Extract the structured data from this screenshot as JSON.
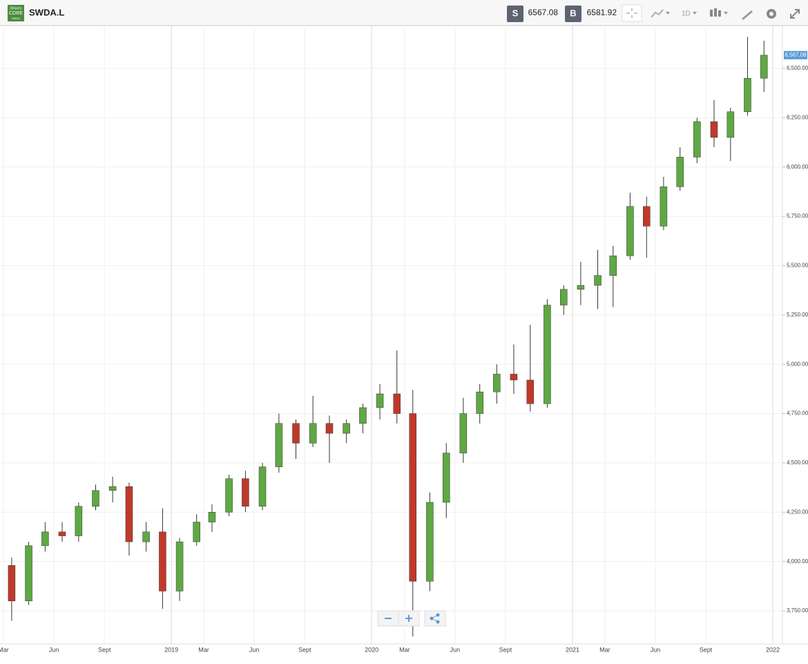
{
  "header": {
    "logo": [
      "iShares",
      "CORE",
      "SWDA"
    ],
    "symbol": "SWDA.L",
    "sell_label": "S",
    "sell": 6567.08,
    "buy_label": "B",
    "buy": 6581.92,
    "interval": "1D"
  },
  "chart_data": {
    "type": "candlestick",
    "x": [
      "2018-03",
      "2018-04",
      "2018-05",
      "2018-06",
      "2018-07",
      "2018-08",
      "2018-09",
      "2018-10",
      "2018-11",
      "2018-12",
      "2019-01",
      "2019-02",
      "2019-03",
      "2019-04",
      "2019-05",
      "2019-06",
      "2019-07",
      "2019-08",
      "2019-09",
      "2019-10",
      "2019-11",
      "2019-12",
      "2020-01",
      "2020-02",
      "2020-03",
      "2020-04",
      "2020-05",
      "2020-06",
      "2020-07",
      "2020-08",
      "2020-09",
      "2020-10",
      "2020-11",
      "2020-12",
      "2021-01",
      "2021-02",
      "2021-03",
      "2021-04",
      "2021-05",
      "2021-06",
      "2021-07",
      "2021-08",
      "2021-09",
      "2021-10",
      "2021-11",
      "2021-12"
    ],
    "open": [
      3980,
      3800,
      4080,
      4150,
      4130,
      4280,
      4360,
      4380,
      4100,
      4150,
      3850,
      4100,
      4200,
      4250,
      4420,
      4280,
      4480,
      4700,
      4600,
      4700,
      4650,
      4700,
      4780,
      4850,
      4750,
      3900,
      4300,
      4550,
      4750,
      4860,
      4950,
      4920,
      4800,
      5300,
      5380,
      5400,
      5450,
      5550,
      5800,
      5700,
      5900,
      6050,
      6230,
      6150,
      6280,
      6450
    ],
    "high": [
      4020,
      4100,
      4200,
      4200,
      4300,
      4390,
      4430,
      4400,
      4200,
      4270,
      4120,
      4240,
      4290,
      4440,
      4460,
      4500,
      4750,
      4720,
      4840,
      4740,
      4720,
      4800,
      4900,
      5070,
      4870,
      4350,
      4600,
      4830,
      4900,
      5000,
      5100,
      5200,
      5330,
      5400,
      5520,
      5580,
      5600,
      5870,
      5850,
      5950,
      6100,
      6250,
      6340,
      6300,
      6660,
      6640
    ],
    "low": [
      3700,
      3780,
      4050,
      4100,
      4100,
      4260,
      4300,
      4030,
      4050,
      3760,
      3800,
      4080,
      4150,
      4230,
      4250,
      4260,
      4450,
      4520,
      4580,
      4500,
      4600,
      4650,
      4720,
      4700,
      3620,
      3850,
      4220,
      4500,
      4700,
      4800,
      4850,
      4760,
      4780,
      5250,
      5300,
      5280,
      5290,
      5530,
      5540,
      5680,
      5880,
      6020,
      6100,
      6030,
      6260,
      6380
    ],
    "close": [
      3800,
      4080,
      4150,
      4130,
      4280,
      4360,
      4380,
      4100,
      4150,
      3850,
      4100,
      4200,
      4250,
      4420,
      4280,
      4480,
      4700,
      4600,
      4700,
      4650,
      4700,
      4780,
      4850,
      4750,
      3900,
      4300,
      4550,
      4750,
      4860,
      4950,
      4920,
      4800,
      5300,
      5380,
      5400,
      5450,
      5550,
      5800,
      5700,
      5900,
      6050,
      6230,
      6150,
      6280,
      6450,
      6567
    ],
    "up_color": "#5fa843",
    "down_color": "#c0392b",
    "xlim": [
      "2018-03",
      "2022-01"
    ],
    "xticks": [
      {
        "value": "2018-03",
        "label": "Mar"
      },
      {
        "value": "2018-06",
        "label": "Jun"
      },
      {
        "value": "2018-09",
        "label": "Sept"
      },
      {
        "value": "2019-01",
        "label": "2019"
      },
      {
        "value": "2019-03",
        "label": "Mar"
      },
      {
        "value": "2019-06",
        "label": "Jun"
      },
      {
        "value": "2019-09",
        "label": "Sept"
      },
      {
        "value": "2020-01",
        "label": "2020"
      },
      {
        "value": "2020-03",
        "label": "Mar"
      },
      {
        "value": "2020-06",
        "label": "Jun"
      },
      {
        "value": "2020-09",
        "label": "Sept"
      },
      {
        "value": "2021-01",
        "label": "2021"
      },
      {
        "value": "2021-03",
        "label": "Mar"
      },
      {
        "value": "2021-06",
        "label": "Jun"
      },
      {
        "value": "2021-09",
        "label": "Sept"
      },
      {
        "value": "2022-01",
        "label": "2022"
      }
    ],
    "ylim": [
      3582,
      6717
    ],
    "yticks": [
      {
        "value": 3750,
        "label": "3,750.00"
      },
      {
        "value": 4000,
        "label": "4,000.00"
      },
      {
        "value": 4250,
        "label": "4,250.00"
      },
      {
        "value": 4500,
        "label": "4,500.00"
      },
      {
        "value": 4750,
        "label": "4,750.00"
      },
      {
        "value": 5000,
        "label": "5,000.00"
      },
      {
        "value": 5250,
        "label": "5,250.00"
      },
      {
        "value": 5500,
        "label": "5,500.00"
      },
      {
        "value": 5750,
        "label": "5,750.00"
      },
      {
        "value": 6000,
        "label": "6,000.00"
      },
      {
        "value": 6250,
        "label": "6,250.00"
      },
      {
        "value": 6500,
        "label": "6,500.00"
      }
    ],
    "last": {
      "value": 6567.08,
      "label": "6,567.08"
    },
    "last_color": "#5b9bd5",
    "grid": true
  }
}
